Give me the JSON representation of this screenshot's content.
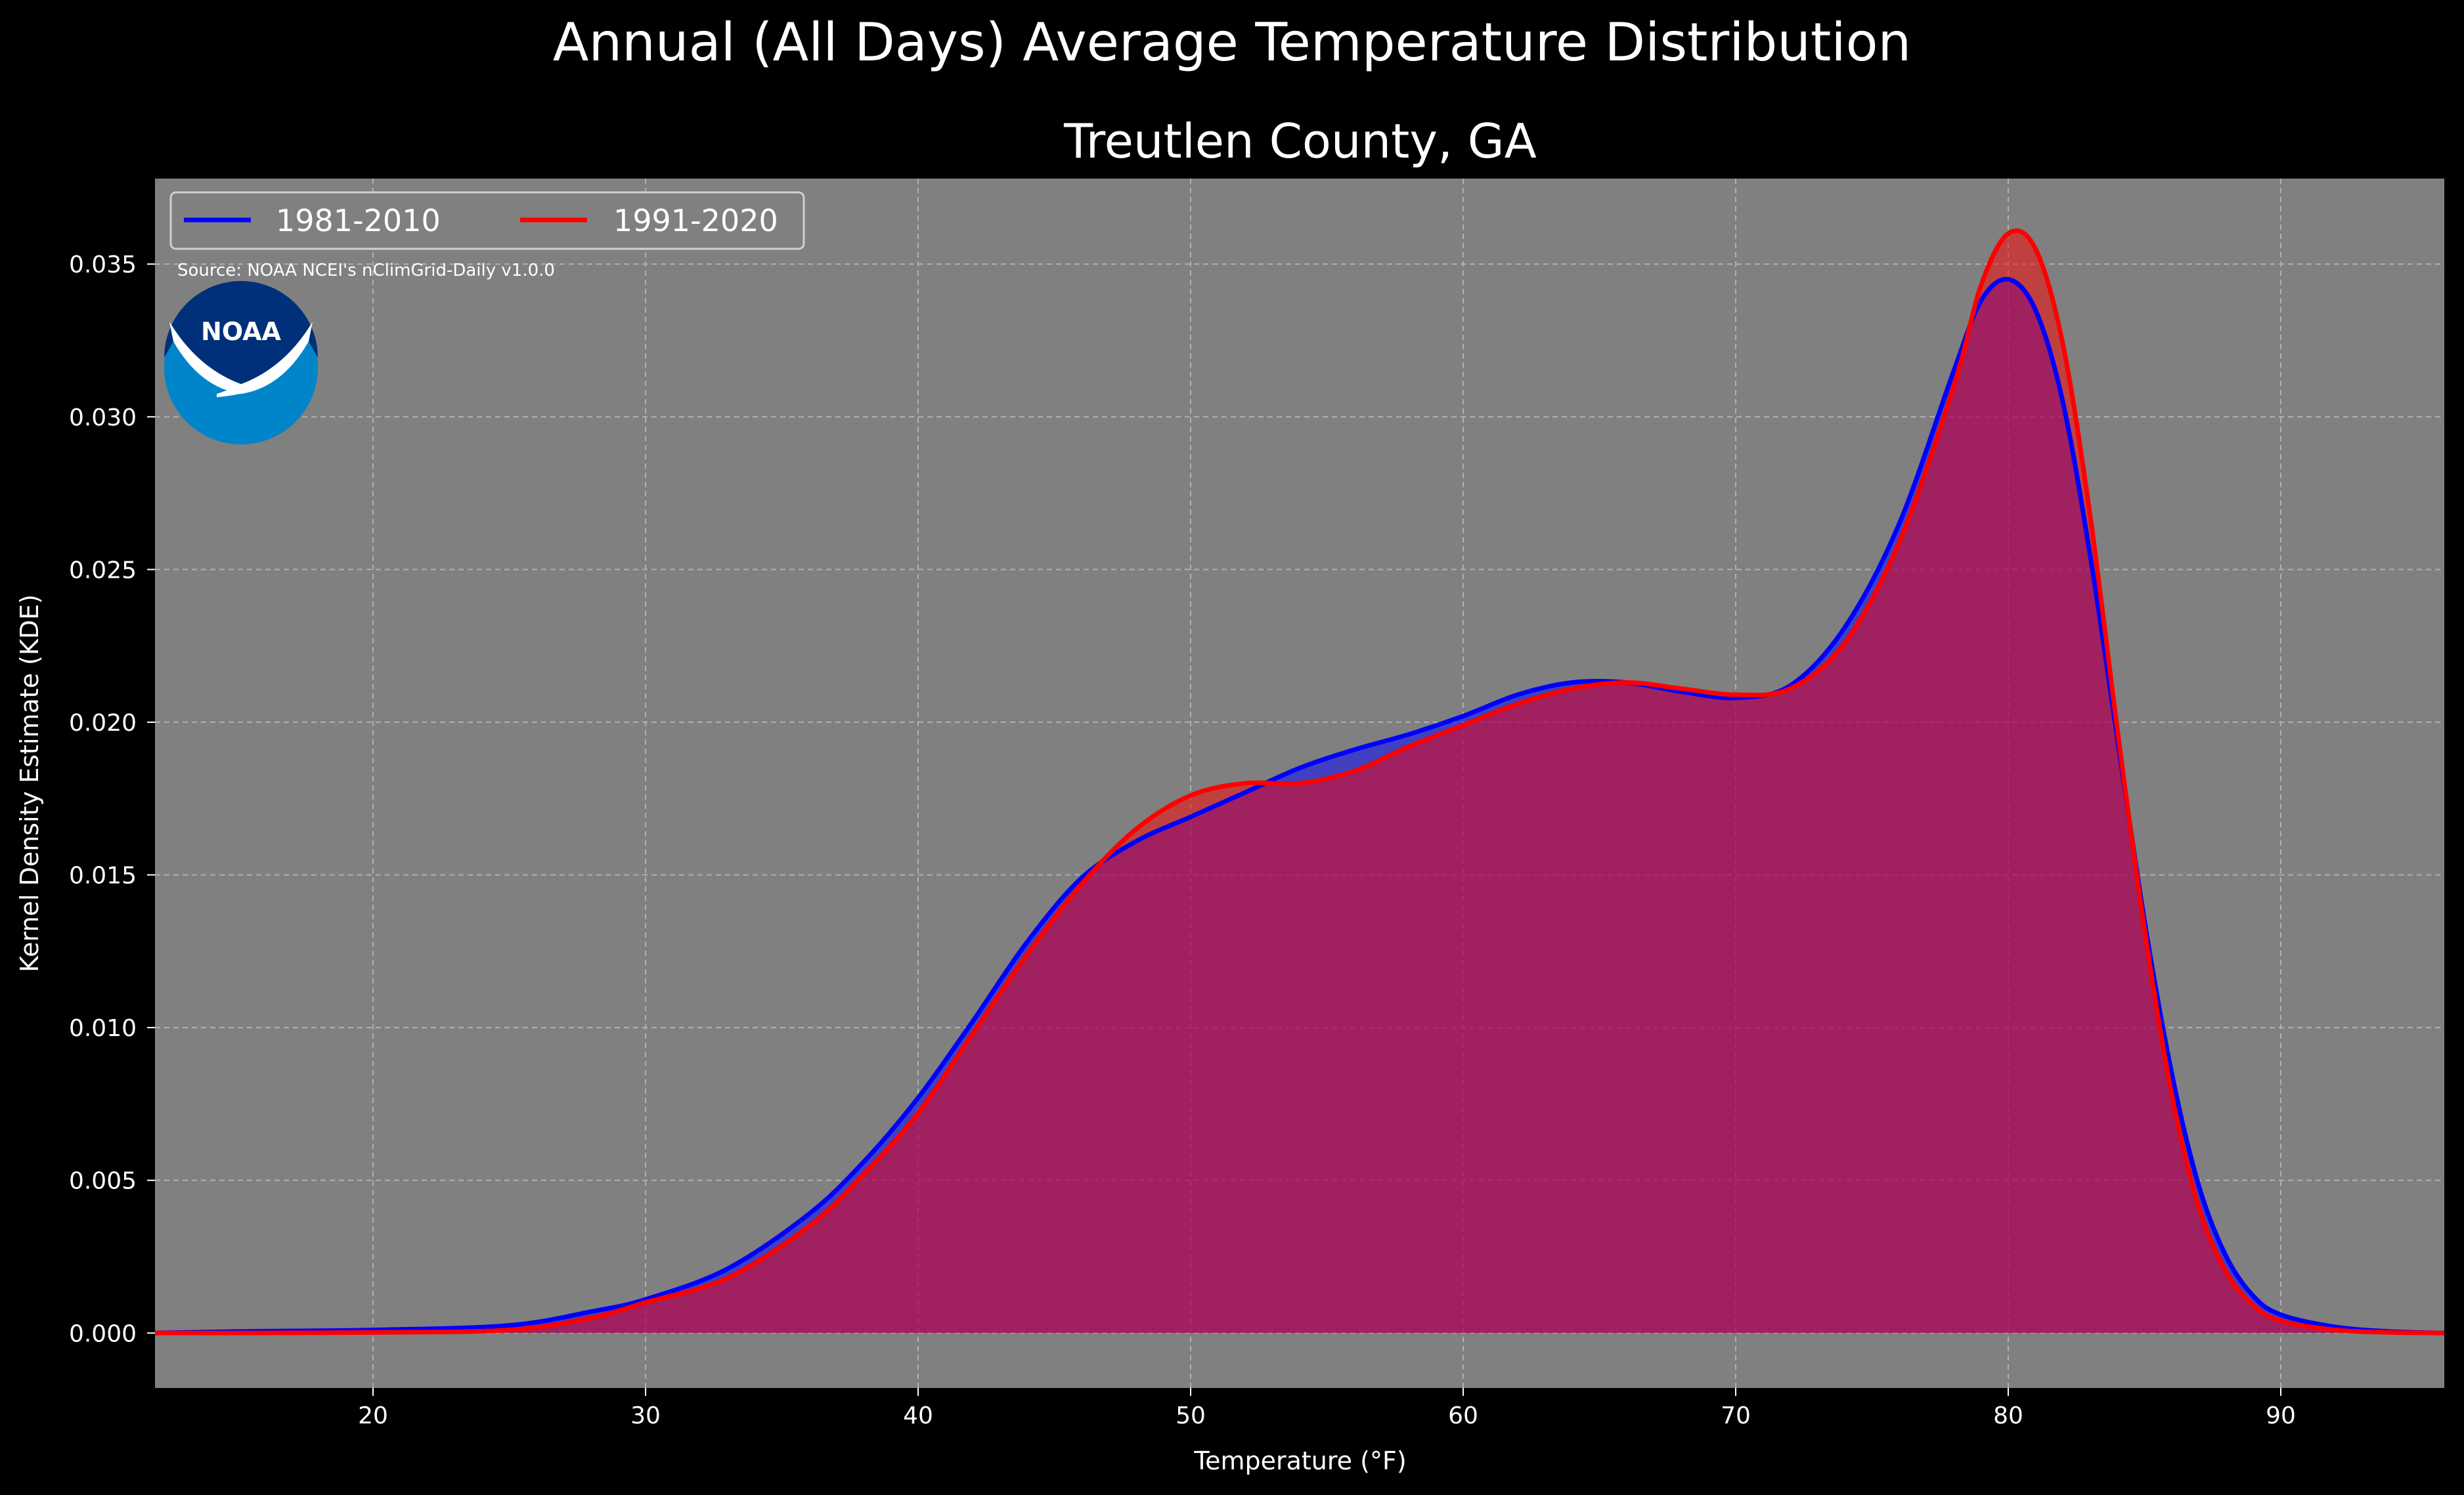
{
  "chart_data": {
    "type": "area",
    "suptitle": "Annual (All Days) Average Temperature Distribution",
    "title": "Treutlen County, GA",
    "xlabel": "Temperature ($^\\circ$F)",
    "xlabel_display": "Temperature (°F)",
    "ylabel": "Kernel Density Estimate (KDE)",
    "xlim": [
      12,
      96
    ],
    "ylim": [
      -0.0018,
      0.0378
    ],
    "xticks": [
      20,
      30,
      40,
      50,
      60,
      70,
      80,
      90
    ],
    "yticks": [
      0.0,
      0.005,
      0.01,
      0.015,
      0.02,
      0.025,
      0.03,
      0.035
    ],
    "xtick_labels": [
      "20",
      "30",
      "40",
      "50",
      "60",
      "70",
      "80",
      "90"
    ],
    "ytick_labels": [
      "0.000",
      "0.005",
      "0.010",
      "0.015",
      "0.020",
      "0.025",
      "0.030",
      "0.035"
    ],
    "grid": true,
    "legend_position": "top-left",
    "background": "#808080",
    "source_note": "Source: NOAA NCEI's nClimGrid-Daily v1.0.0",
    "logo_text": "NOAA",
    "series": [
      {
        "name": "1981-2010",
        "color": "#0000ff",
        "fill": "#0000ff",
        "fill_opacity": 0.5,
        "x": [
          12,
          15,
          20,
          25,
          28,
          30,
          33,
          36,
          38,
          40,
          42,
          44,
          46,
          48,
          50,
          52,
          54,
          56,
          58,
          60,
          62,
          64,
          66,
          68,
          70,
          72,
          74,
          76,
          78,
          79,
          80,
          81,
          82,
          83,
          84,
          85,
          86,
          87,
          88,
          89,
          90,
          92,
          94,
          96
        ],
        "y": [
          0.0,
          5e-05,
          0.0001,
          0.00025,
          0.0007,
          0.0011,
          0.0021,
          0.0039,
          0.0056,
          0.0077,
          0.0102,
          0.0128,
          0.0149,
          0.0161,
          0.0169,
          0.0177,
          0.0185,
          0.0191,
          0.0196,
          0.0202,
          0.0209,
          0.0213,
          0.0213,
          0.021,
          0.0208,
          0.0212,
          0.0231,
          0.0265,
          0.0315,
          0.0338,
          0.0345,
          0.0335,
          0.0305,
          0.0255,
          0.0195,
          0.0135,
          0.0085,
          0.0048,
          0.0025,
          0.0012,
          0.0006,
          0.0002,
          5e-05,
          0.0
        ]
      },
      {
        "name": "1991-2020",
        "color": "#ff0000",
        "fill": "#ff0000",
        "fill_opacity": 0.5,
        "x": [
          12,
          15,
          20,
          25,
          28,
          30,
          33,
          36,
          38,
          40,
          42,
          44,
          46,
          48,
          50,
          52,
          54,
          56,
          58,
          60,
          62,
          64,
          66,
          68,
          70,
          72,
          74,
          76,
          78,
          79,
          80,
          81,
          82,
          83,
          84,
          85,
          86,
          87,
          88,
          89,
          90,
          92,
          94,
          96
        ],
        "y": [
          0.0,
          0.0,
          2e-05,
          0.0001,
          0.0005,
          0.001,
          0.0018,
          0.0035,
          0.0052,
          0.0072,
          0.0098,
          0.0124,
          0.0147,
          0.0165,
          0.0176,
          0.018,
          0.018,
          0.0184,
          0.0192,
          0.0199,
          0.0206,
          0.0211,
          0.0213,
          0.0211,
          0.0209,
          0.0211,
          0.0226,
          0.0259,
          0.031,
          0.0343,
          0.036,
          0.0355,
          0.0324,
          0.0268,
          0.0198,
          0.0132,
          0.0078,
          0.0041,
          0.002,
          0.0009,
          0.0004,
          0.0001,
          2e-05,
          0.0
        ]
      }
    ]
  }
}
